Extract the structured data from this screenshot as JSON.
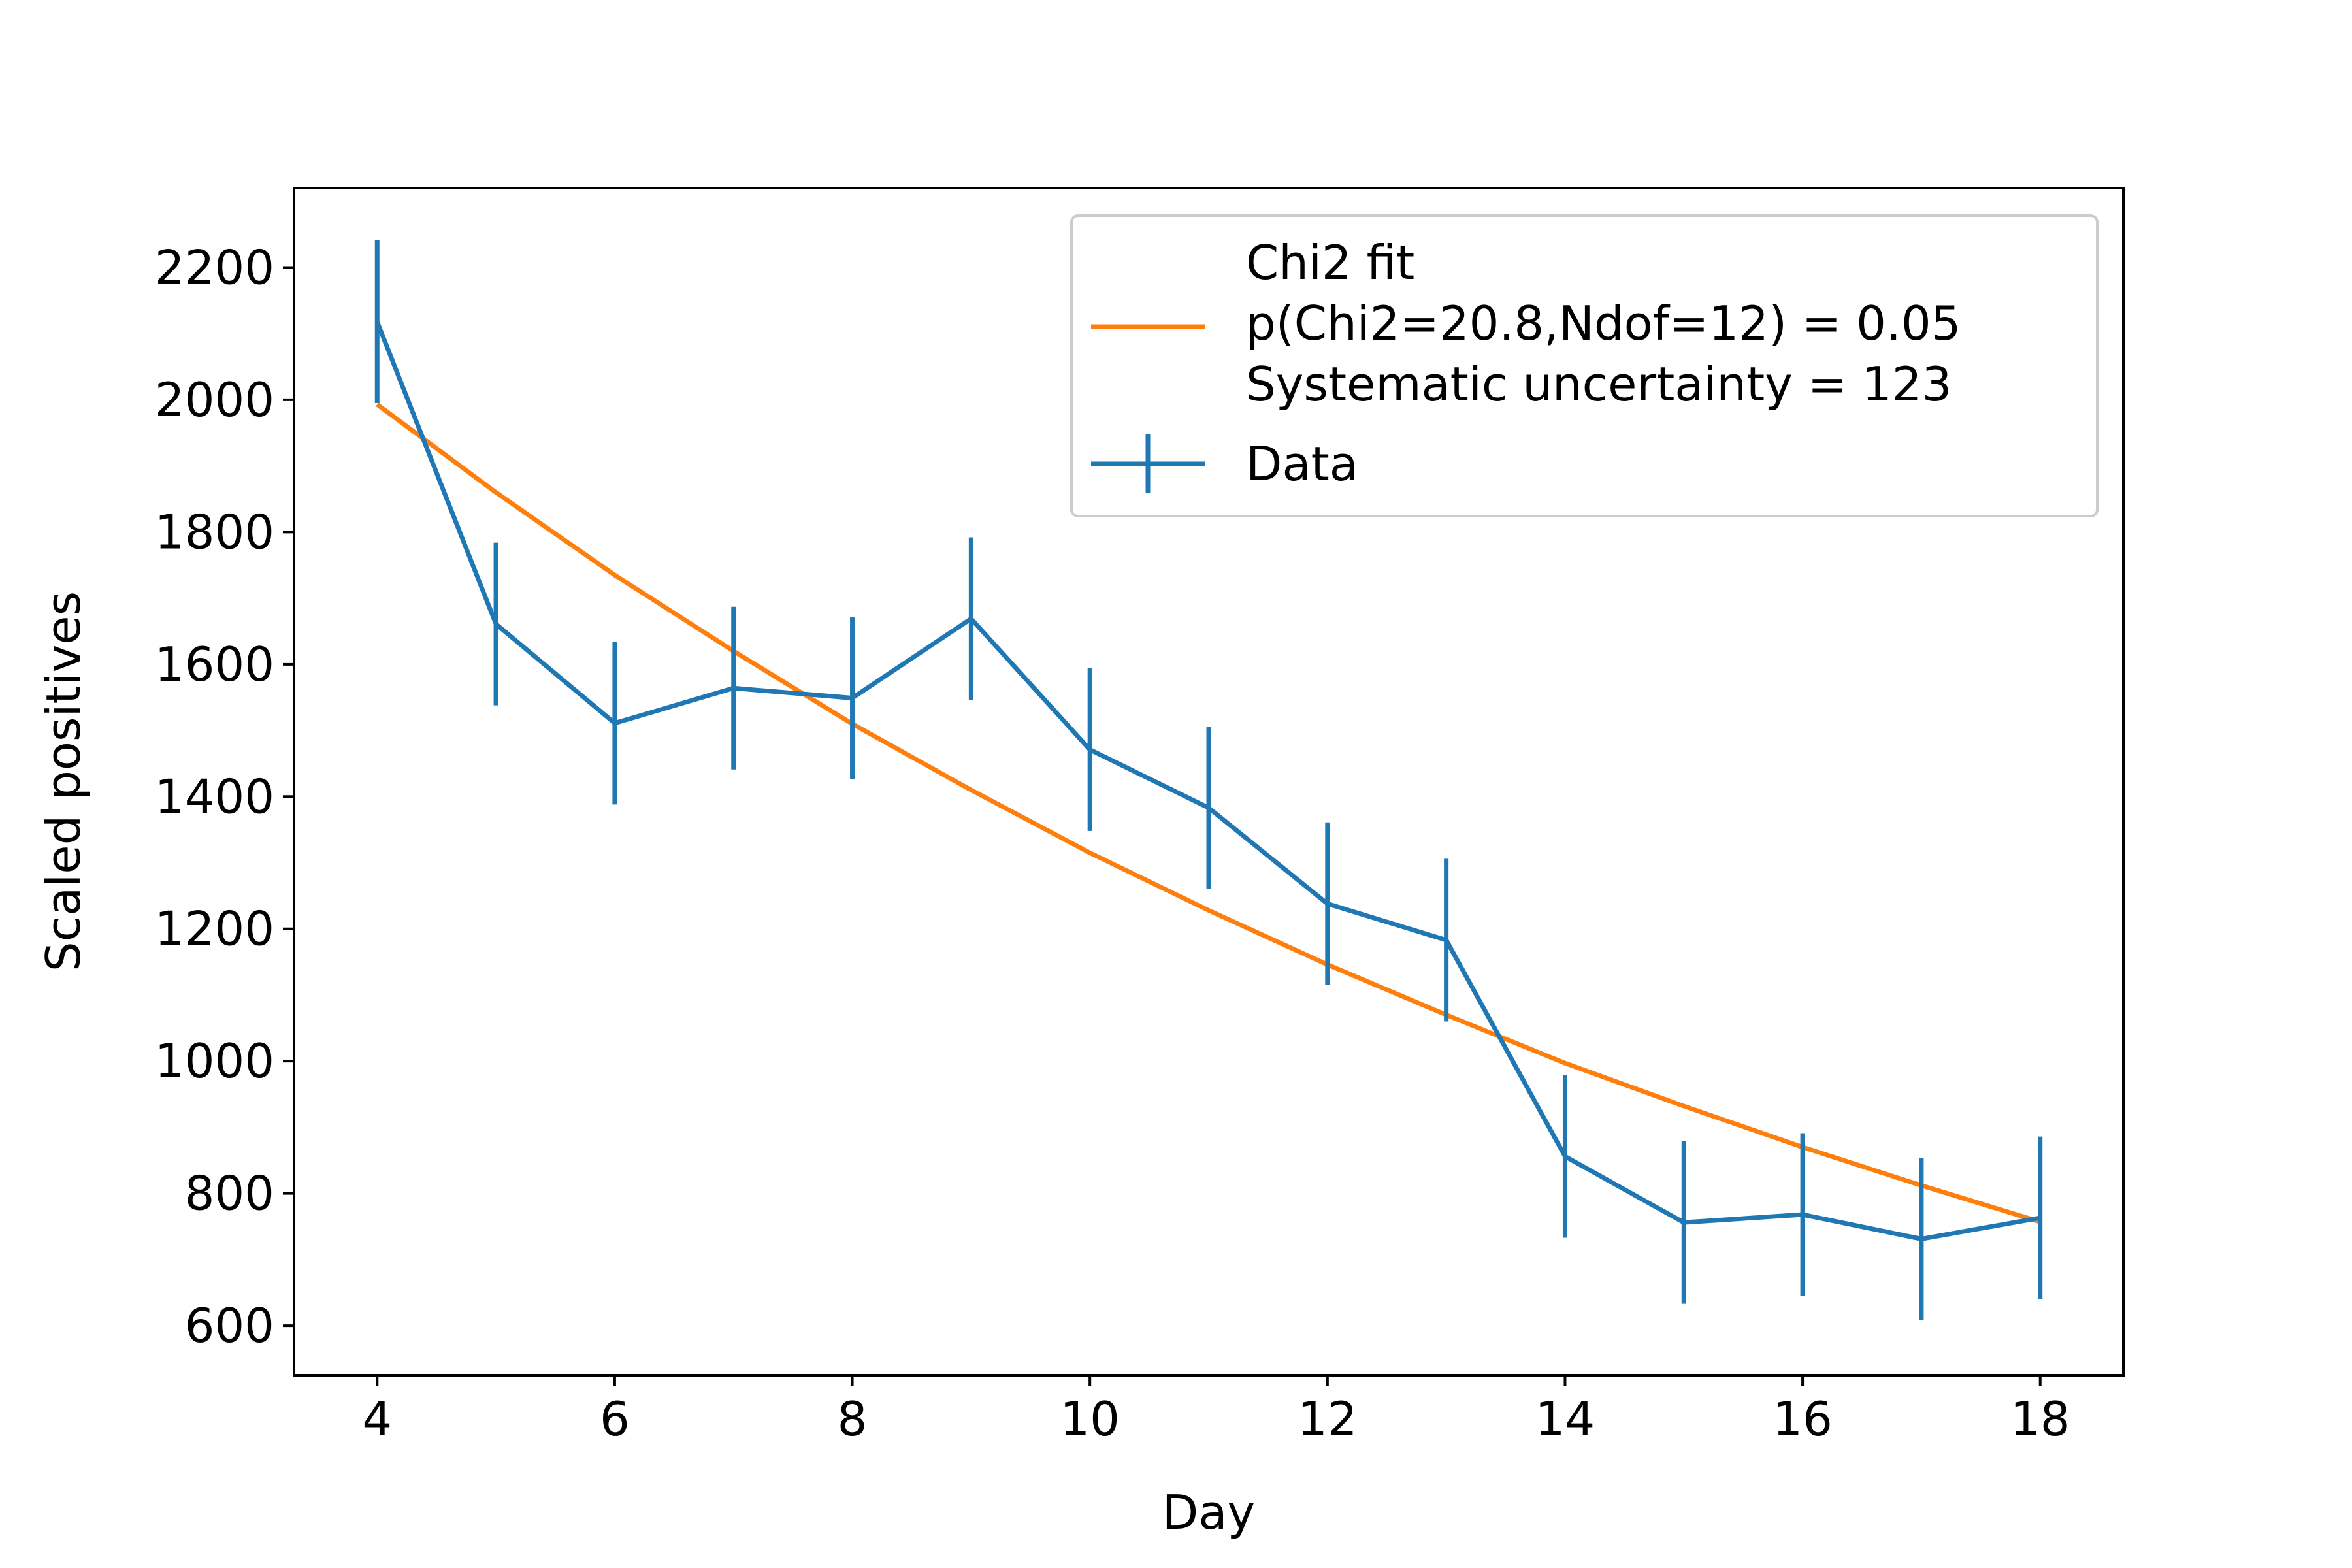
{
  "chart_data": {
    "type": "line",
    "title": "",
    "xlabel": "Day",
    "ylabel": "Scaled positives",
    "xlim": [
      3.3,
      18.7
    ],
    "ylim": [
      525,
      2320
    ],
    "xticks": [
      4,
      6,
      8,
      10,
      12,
      14,
      16,
      18
    ],
    "yticks": [
      600,
      800,
      1000,
      1200,
      1400,
      1600,
      1800,
      2000,
      2200
    ],
    "grid": false,
    "legend": {
      "placement": "top-right",
      "fit_lines": [
        "Chi2 fit",
        "p(Chi2=20.8,Ndof=12) = 0.05",
        "Systematic uncertainty = 123"
      ],
      "data_label": "Data"
    },
    "series": [
      {
        "name": "Data",
        "kind": "errorbar",
        "color": "#1f77b4",
        "x": [
          4,
          5,
          6,
          7,
          8,
          9,
          10,
          11,
          12,
          13,
          14,
          15,
          16,
          17,
          18
        ],
        "y": [
          2118,
          1661,
          1511,
          1564,
          1549,
          1669,
          1471,
          1383,
          1238,
          1183,
          856,
          756,
          768,
          731,
          763
        ],
        "yerr": [
          123,
          123,
          123,
          123,
          123,
          123,
          123,
          123,
          123,
          123,
          123,
          123,
          123,
          123,
          123
        ]
      },
      {
        "name": "Chi2 fit",
        "kind": "line",
        "color": "#ff7f0e",
        "x": [
          4,
          5,
          6,
          7,
          8,
          9,
          10,
          11,
          12,
          13,
          14,
          15,
          16,
          17,
          18
        ],
        "y": [
          1993,
          1860,
          1735,
          1620,
          1510,
          1410,
          1315,
          1228,
          1146,
          1070,
          997,
          932,
          870,
          812,
          757
        ]
      }
    ]
  }
}
